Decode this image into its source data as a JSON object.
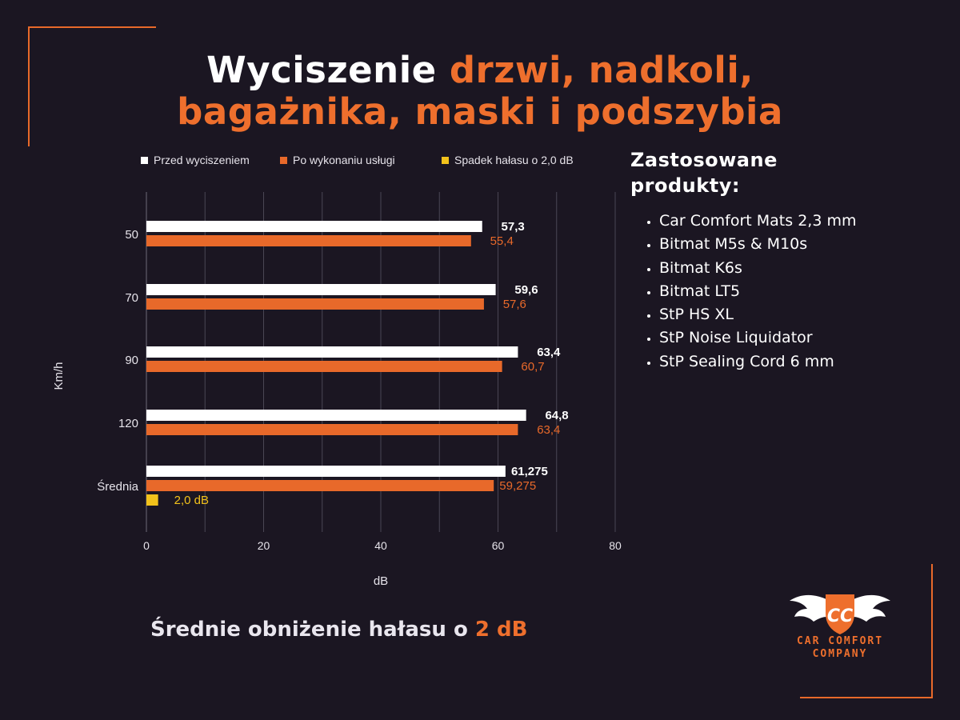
{
  "title": {
    "line1_white": "Wyciszenie ",
    "line1_orange": "drzwi, nadkoli,",
    "line2_orange": "bagażnika, maski i podszybia"
  },
  "colors": {
    "background": "#1b1622",
    "accent": "#ee6f2d",
    "before_bar": "#ffffff",
    "after_bar": "#e8692a",
    "drop_bar": "#f2c21b"
  },
  "chart_data": {
    "type": "bar",
    "orientation": "horizontal",
    "categories": [
      "50",
      "70",
      "90",
      "120",
      "Średnia"
    ],
    "series": [
      {
        "name": "Przed wyciszeniem",
        "values": [
          57.3,
          59.6,
          63.4,
          64.8,
          61.275
        ],
        "labels": [
          "57,3",
          "59,6",
          "63,4",
          "64,8",
          "61,275"
        ]
      },
      {
        "name": "Po wykonaniu usługi",
        "values": [
          55.4,
          57.6,
          60.7,
          63.4,
          59.275
        ],
        "labels": [
          "55,4",
          "57,6",
          "60,7",
          "63,4",
          "59,275"
        ]
      },
      {
        "name": "Spadek hałasu o 2,0 dB",
        "values": [
          null,
          null,
          null,
          null,
          2.0
        ],
        "labels": [
          "",
          "",
          "",
          "",
          "2,0 dB"
        ]
      }
    ],
    "xlabel": "dB",
    "ylabel": "Km/h",
    "xlim": [
      0,
      80
    ],
    "xticks": [
      0,
      20,
      40,
      60,
      80
    ],
    "grid": true,
    "legend_position": "top"
  },
  "side": {
    "heading_line1": "Zastosowane",
    "heading_line2": "produkty:",
    "products": [
      "Car Comfort Mats 2,3 mm",
      "Bitmat M5s & M10s",
      "Bitmat K6s",
      "Bitmat LT5",
      "StP HS XL",
      "StP Noise Liquidator",
      "StP Sealing Cord 6 mm"
    ]
  },
  "summary": {
    "text": "Średnie obniżenie hałasu o ",
    "highlight": "2 dB"
  },
  "logo": {
    "monogram": "CC",
    "line1": "CAR COMFORT",
    "line2": "COMPANY",
    "icon": "winged-shield-icon"
  }
}
